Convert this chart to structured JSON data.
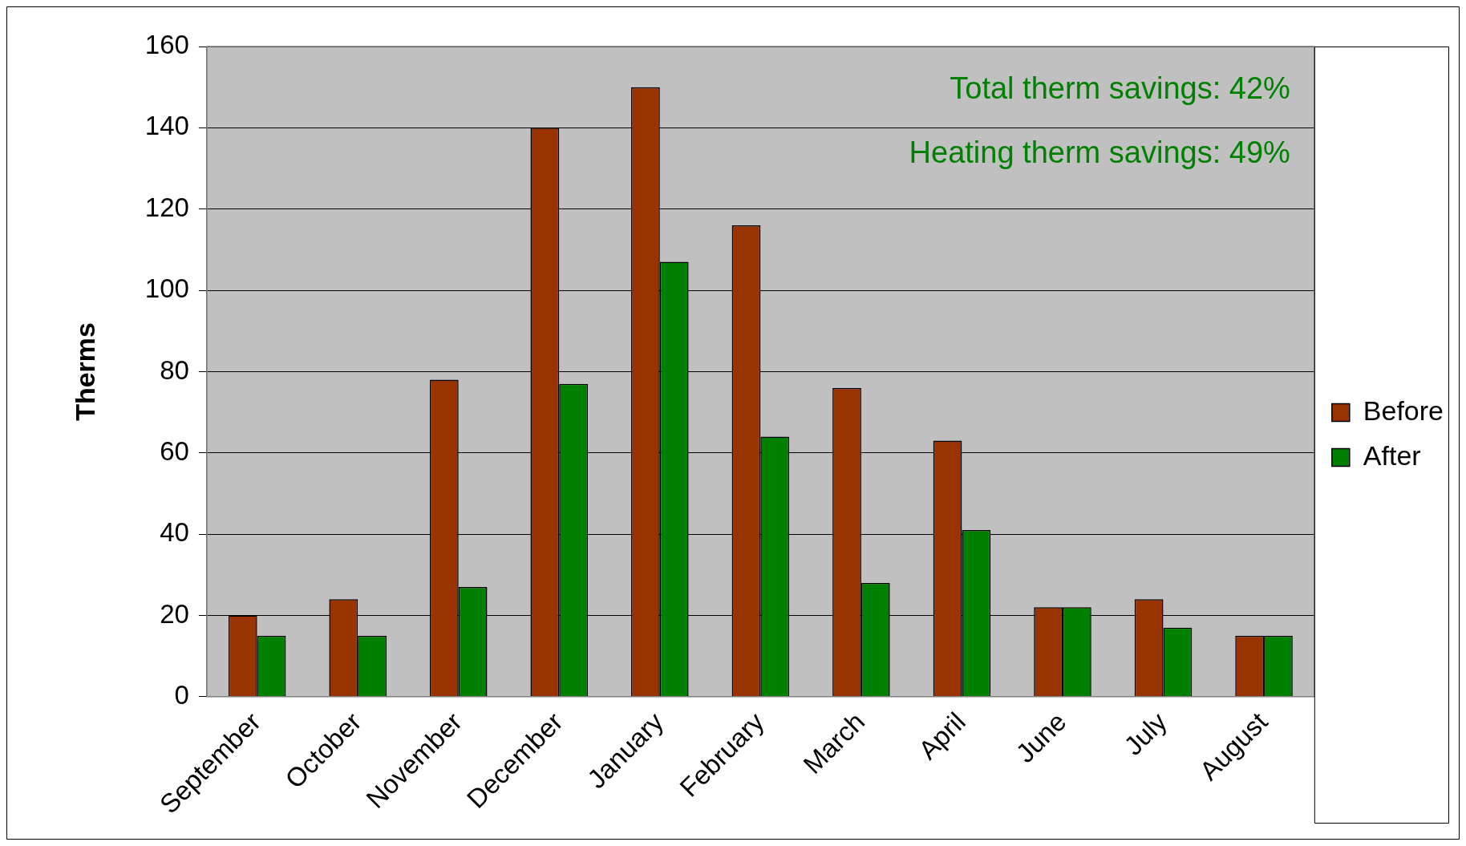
{
  "chart_data": {
    "type": "bar",
    "ylabel": "Therms",
    "categories": [
      "September",
      "October",
      "November",
      "December",
      "January",
      "February",
      "March",
      "April",
      "June",
      "July",
      "August"
    ],
    "series": [
      {
        "name": "Before",
        "color": "#993300",
        "values": [
          20,
          24,
          78,
          140,
          150,
          116,
          76,
          63,
          22,
          24,
          15
        ]
      },
      {
        "name": "After",
        "color": "#008000",
        "values": [
          15,
          15,
          27,
          77,
          107,
          64,
          28,
          41,
          22,
          17,
          15
        ]
      }
    ],
    "ylim": [
      0,
      160
    ],
    "yticks": [
      0,
      20,
      40,
      60,
      80,
      100,
      120,
      140,
      160
    ],
    "grid": "y",
    "legend": "right",
    "annotations": [
      "Total therm savings: 42%",
      "Heating therm savings: 49%"
    ]
  }
}
